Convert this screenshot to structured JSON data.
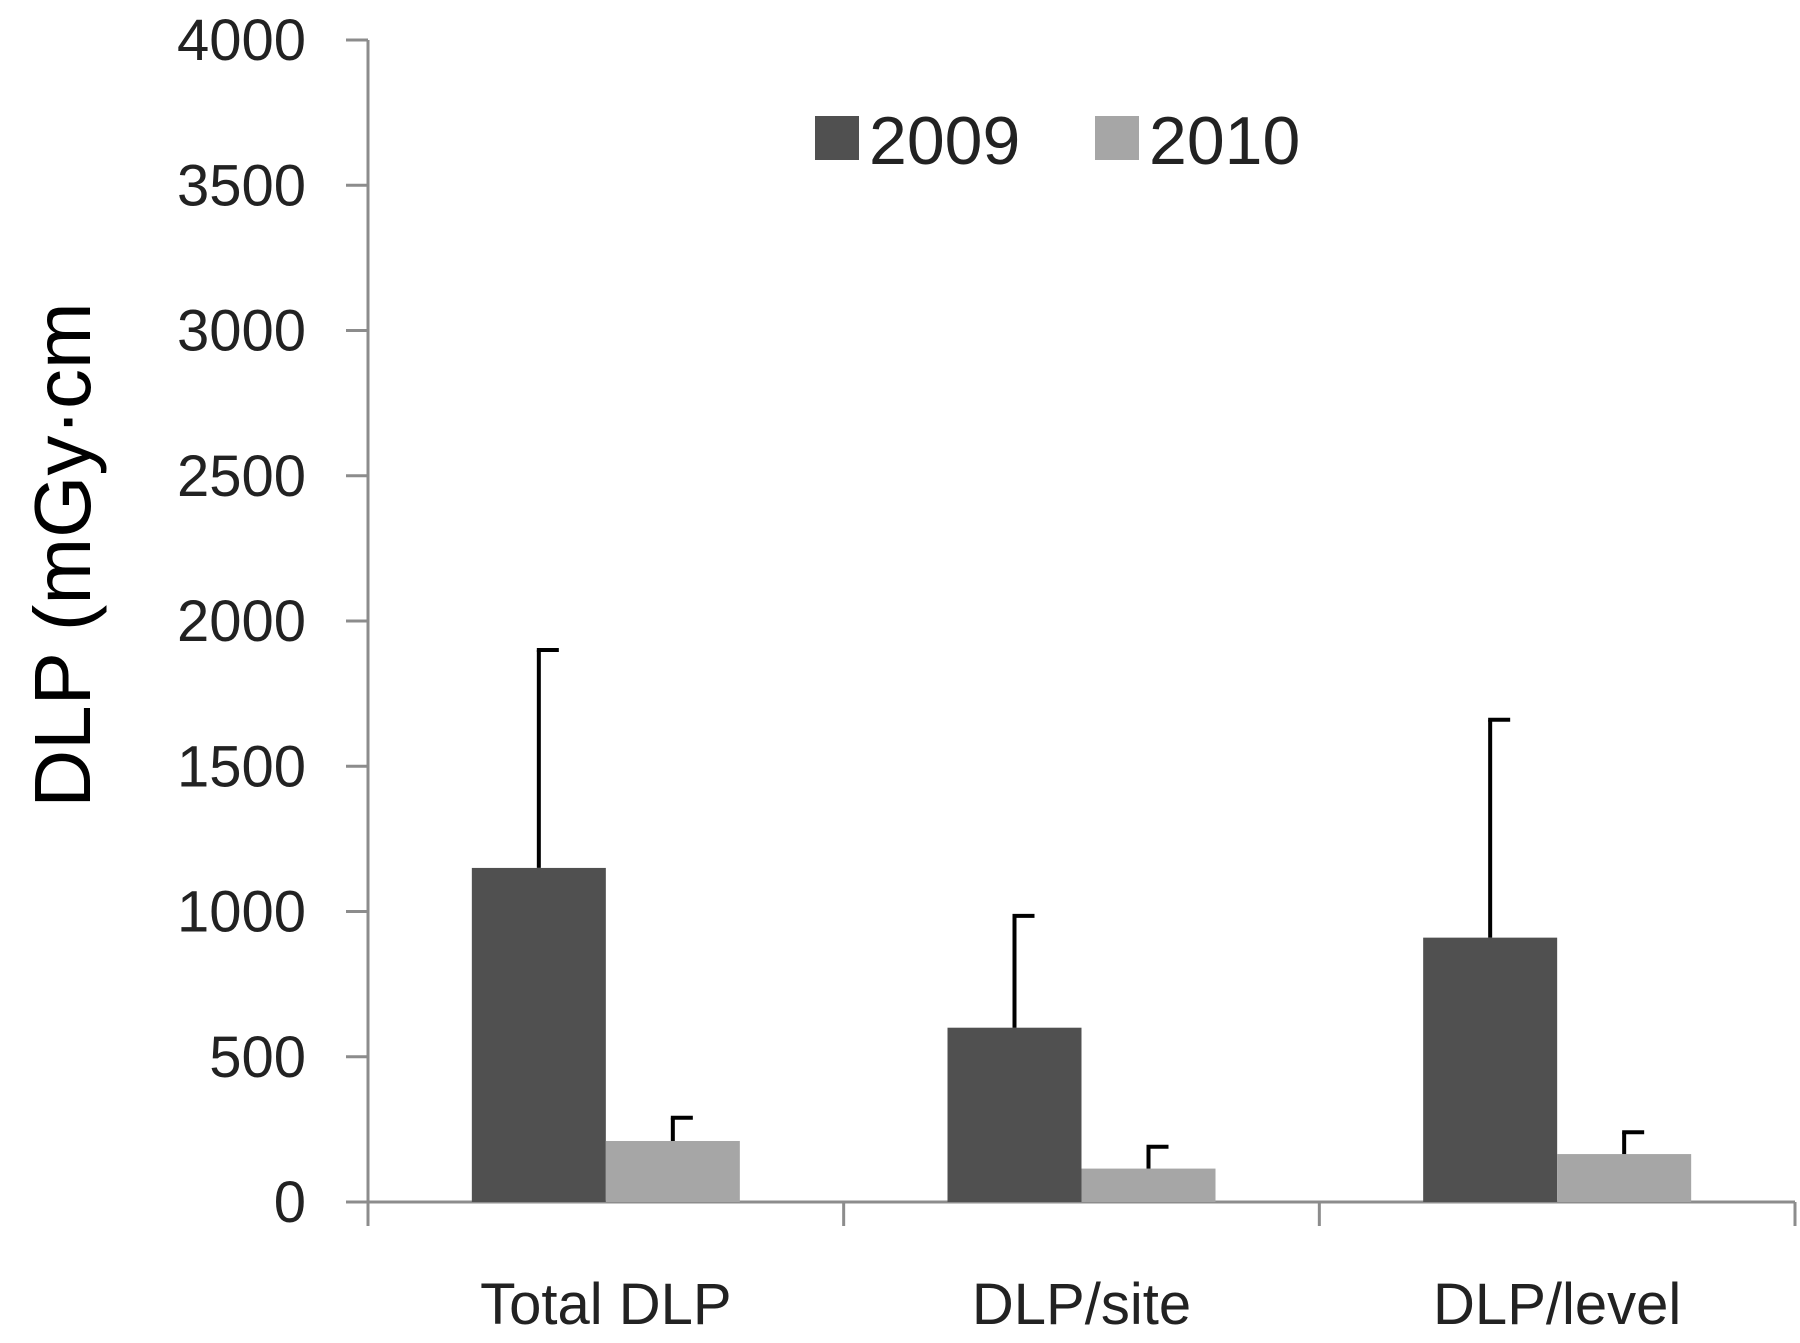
{
  "chart_data": {
    "type": "bar",
    "title": "",
    "xlabel": "",
    "ylabel": "DLP (mGy·cm",
    "ylim": [
      0,
      4000
    ],
    "yticks": [
      0,
      500,
      1000,
      1500,
      2000,
      2500,
      3000,
      3500,
      4000
    ],
    "categories": [
      "Total DLP",
      "DLP/site",
      "DLP/level"
    ],
    "series": [
      {
        "name": "2009",
        "color": "#505050",
        "values": [
          1150,
          600,
          910
        ],
        "error_upper": [
          1900,
          985,
          1660
        ]
      },
      {
        "name": "2010",
        "color": "#a6a6a6",
        "values": [
          210,
          115,
          165
        ],
        "error_upper": [
          290,
          190,
          240
        ]
      }
    ],
    "legend_position": "top-center",
    "grid": false
  }
}
